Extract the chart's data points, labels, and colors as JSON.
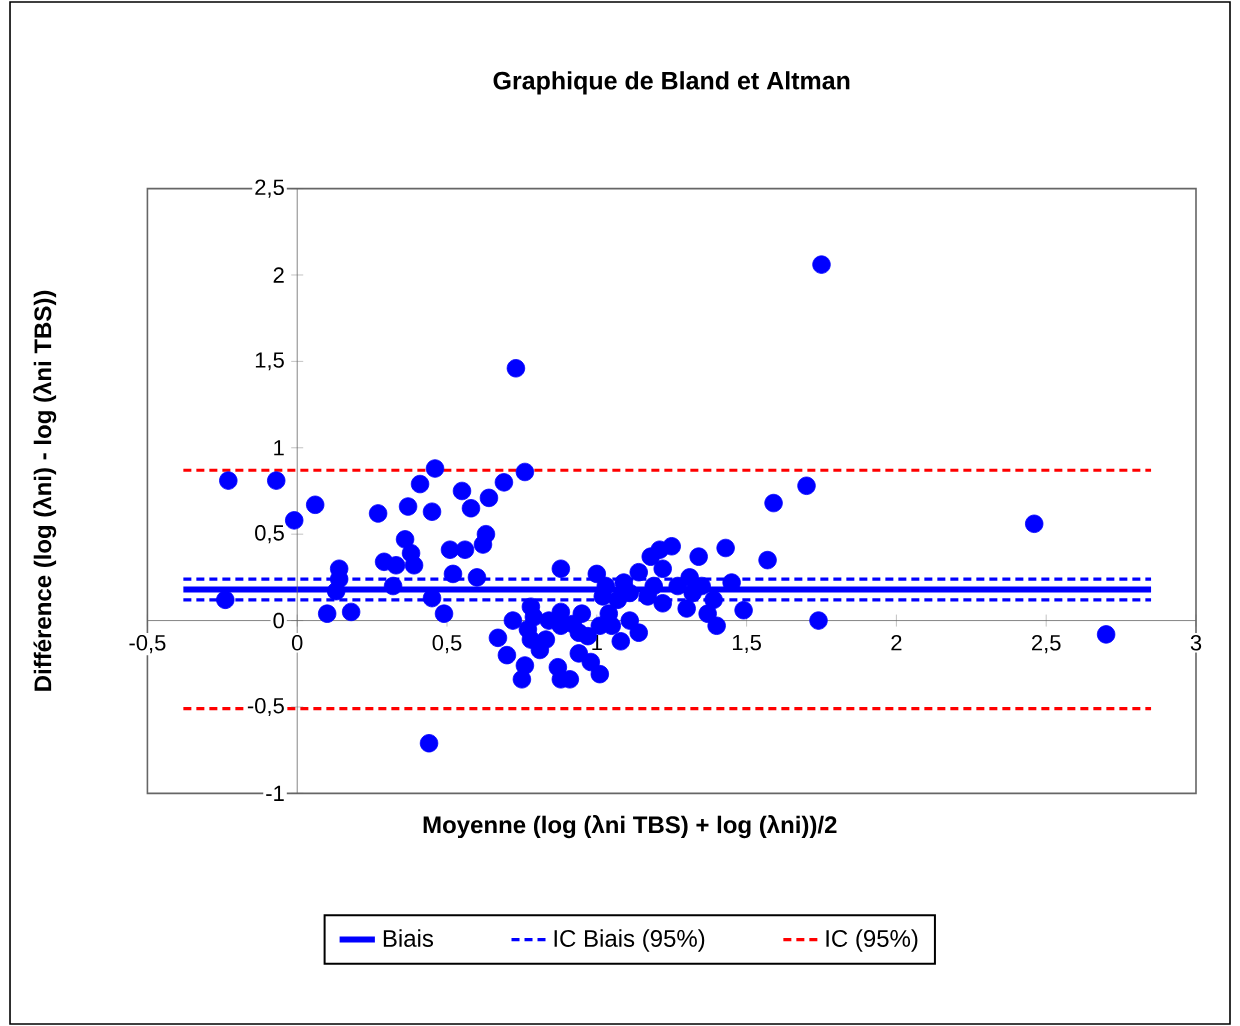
{
  "chart_data": {
    "type": "scatter",
    "title": "Graphique de Bland et Altman",
    "xlabel": "Moyenne (log (λni TBS) + log (λni))/2",
    "ylabel": "Différence (log (λni) - log (λni TBS))",
    "xlim": [
      -0.5,
      3
    ],
    "ylim": [
      -1,
      2.5
    ],
    "xticks": [
      {
        "value": -0.5,
        "label": "-0,5"
      },
      0,
      {
        "value": 0.5,
        "label": "0,5"
      },
      1,
      {
        "value": 1.5,
        "label": "1,5"
      },
      2,
      {
        "value": 2.5,
        "label": "2,5"
      },
      3
    ],
    "yticks": [
      -1,
      {
        "value": -0.5,
        "label": "-0,5"
      },
      0,
      {
        "value": 0.5,
        "label": "0,5"
      },
      1,
      {
        "value": 1.5,
        "label": "1,5"
      },
      2,
      {
        "value": 2.5,
        "label": "2,5"
      }
    ],
    "legend": "bottom",
    "grid": false,
    "series": [
      {
        "color": "#0000ff",
        "marker": "circle",
        "x": [
          -0.23,
          -0.07,
          -0.01,
          0.06,
          -0.24,
          0.14,
          0.14,
          0.13,
          0.1,
          0.18,
          0.27,
          0.29,
          0.32,
          0.33,
          0.36,
          0.37,
          0.38,
          0.39,
          0.41,
          0.45,
          0.46,
          0.45,
          0.49,
          0.51,
          0.52,
          0.55,
          0.56,
          0.58,
          0.6,
          0.62,
          0.63,
          0.64,
          0.69,
          0.73,
          0.76,
          0.44,
          0.67,
          0.7,
          0.72,
          0.75,
          0.76,
          0.77,
          0.78,
          0.79,
          0.78,
          0.83,
          0.87,
          0.88,
          0.88,
          0.88,
          0.88,
          0.91,
          0.92,
          0.94,
          0.95,
          0.97,
          0.98,
          1.0,
          1.01,
          1.01,
          1.03,
          1.04,
          1.07,
          1.08,
          1.09,
          1.11,
          1.14,
          1.14,
          1.17,
          1.18,
          1.21,
          1.22,
          1.22,
          1.25,
          1.27,
          1.31,
          1.3,
          1.34,
          1.35,
          1.37,
          1.4,
          1.39,
          1.43,
          1.45,
          1.49,
          1.57,
          1.59,
          1.7,
          1.74,
          1.75,
          2.46,
          2.7,
          1.02,
          1.11,
          1.19,
          1.32,
          0.84,
          0.81,
          0.94,
          1.05
        ],
        "values": [
          0.81,
          0.81,
          0.58,
          0.67,
          0.12,
          0.3,
          0.24,
          0.17,
          0.04,
          0.05,
          0.62,
          0.34,
          0.2,
          0.32,
          0.47,
          0.66,
          0.39,
          0.32,
          0.79,
          0.63,
          0.88,
          0.13,
          0.04,
          0.41,
          0.27,
          0.75,
          0.41,
          0.65,
          0.25,
          0.44,
          0.5,
          0.71,
          0.8,
          1.46,
          0.86,
          -0.71,
          -0.1,
          -0.2,
          0.0,
          -0.34,
          -0.26,
          -0.05,
          0.08,
          0.02,
          -0.11,
          -0.11,
          -0.27,
          0.3,
          0.05,
          -0.03,
          -0.34,
          -0.34,
          -0.02,
          -0.19,
          0.04,
          -0.09,
          -0.24,
          0.27,
          -0.31,
          -0.03,
          0.2,
          0.04,
          0.12,
          -0.12,
          0.22,
          0.0,
          0.28,
          -0.07,
          0.14,
          0.37,
          0.41,
          0.3,
          0.1,
          0.43,
          0.2,
          0.25,
          0.07,
          0.37,
          0.2,
          0.04,
          -0.03,
          0.12,
          0.42,
          0.22,
          0.06,
          0.35,
          0.68,
          0.78,
          0.0,
          2.06,
          0.56,
          -0.08,
          0.14,
          0.16,
          0.2,
          0.16,
          0.0,
          -0.17,
          -0.07,
          -0.03
        ]
      },
      {
        "type": "line",
        "name": "Biais",
        "color": "#0000ff",
        "marker": "none",
        "line_style": "solid",
        "x": [
          -0.38,
          2.85
        ],
        "values": [
          0.18,
          0.18
        ]
      },
      {
        "type": "line",
        "name": "IC Biais (95%)",
        "color": "#0000ff",
        "marker": "none",
        "line_style": "dashed",
        "x": [
          -0.38,
          2.85
        ],
        "values": [
          0.24,
          0.24
        ]
      },
      {
        "type": "line",
        "color": "#0000ff",
        "marker": "none",
        "line_style": "dashed",
        "x": [
          -0.38,
          2.85
        ],
        "values": [
          0.12,
          0.12
        ]
      },
      {
        "type": "line",
        "name": "IC (95%)",
        "color": "#ff0000",
        "marker": "none",
        "line_style": "dashed",
        "x": [
          -0.38,
          2.85
        ],
        "values": [
          0.87,
          0.87
        ]
      },
      {
        "type": "line",
        "color": "#ff0000",
        "marker": "none",
        "line_style": "dashed",
        "x": [
          -0.38,
          2.85
        ],
        "values": [
          -0.51,
          -0.51
        ]
      }
    ]
  }
}
